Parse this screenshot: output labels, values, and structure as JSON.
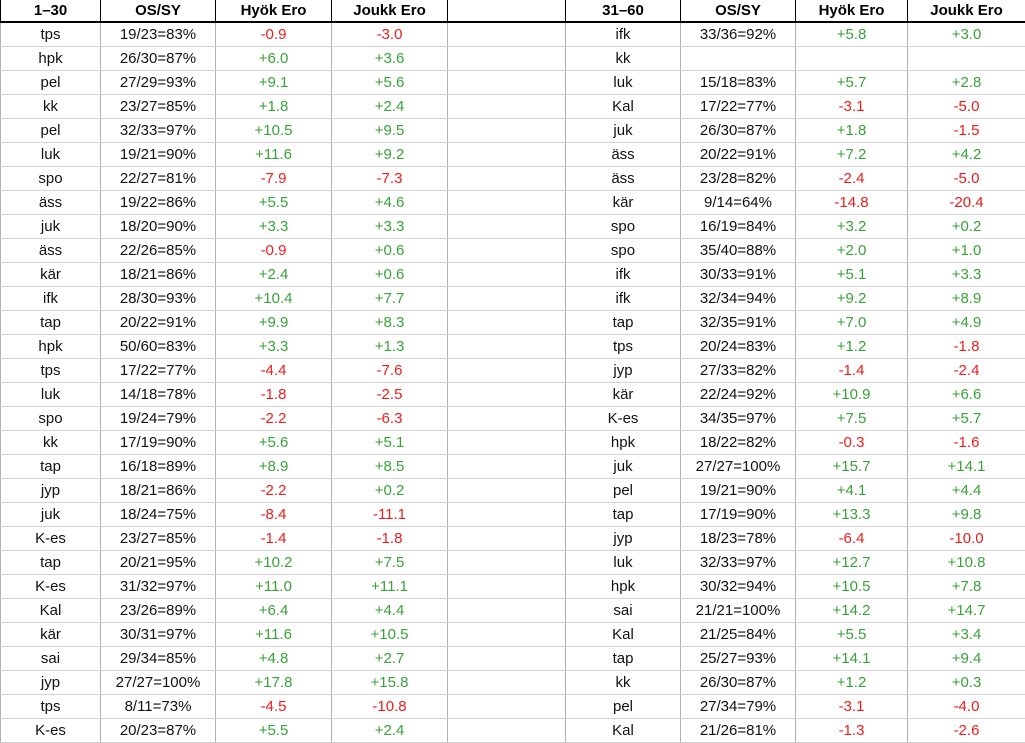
{
  "table": {
    "headers": [
      "1–30",
      "OS/SY",
      "Hyök Ero",
      "Joukk Ero",
      "",
      "31–60",
      "OS/SY",
      "Hyök Ero",
      "Joukk Ero"
    ],
    "colors": {
      "positive": "#3aa23a",
      "negative": "#ee1c1c",
      "header_text": "#000000",
      "body_text": "#111111",
      "header_border": "#000000",
      "grid_vertical": "#b0b0b0",
      "grid_horizontal": "#d2d2d2"
    },
    "rows": [
      {
        "left": [
          "tps",
          "19/23=83%",
          "-0.9",
          "-3.0"
        ],
        "right": [
          "ifk",
          "33/36=92%",
          "+5.8",
          "+3.0"
        ]
      },
      {
        "left": [
          "hpk",
          "26/30=87%",
          "+6.0",
          "+3.6"
        ],
        "right": [
          "kk",
          "",
          "",
          ""
        ]
      },
      {
        "left": [
          "pel",
          "27/29=93%",
          "+9.1",
          "+5.6"
        ],
        "right": [
          "luk",
          "15/18=83%",
          "+5.7",
          "+2.8"
        ]
      },
      {
        "left": [
          "kk",
          "23/27=85%",
          "+1.8",
          "+2.4"
        ],
        "right": [
          "Kal",
          "17/22=77%",
          "-3.1",
          "-5.0"
        ]
      },
      {
        "left": [
          "pel",
          "32/33=97%",
          "+10.5",
          "+9.5"
        ],
        "right": [
          "juk",
          "26/30=87%",
          "+1.8",
          "-1.5"
        ]
      },
      {
        "left": [
          "luk",
          "19/21=90%",
          "+11.6",
          "+9.2"
        ],
        "right": [
          "äss",
          "20/22=91%",
          "+7.2",
          "+4.2"
        ]
      },
      {
        "left": [
          "spo",
          "22/27=81%",
          "-7.9",
          "-7.3"
        ],
        "right": [
          "äss",
          "23/28=82%",
          "-2.4",
          "-5.0"
        ]
      },
      {
        "left": [
          "äss",
          "19/22=86%",
          "+5.5",
          "+4.6"
        ],
        "right": [
          "kär",
          "9/14=64%",
          "-14.8",
          "-20.4"
        ]
      },
      {
        "left": [
          "juk",
          "18/20=90%",
          "+3.3",
          "+3.3"
        ],
        "right": [
          "spo",
          "16/19=84%",
          "+3.2",
          "+0.2"
        ]
      },
      {
        "left": [
          "äss",
          "22/26=85%",
          "-0.9",
          "+0.6"
        ],
        "right": [
          "spo",
          "35/40=88%",
          "+2.0",
          "+1.0"
        ]
      },
      {
        "left": [
          "kär",
          "18/21=86%",
          "+2.4",
          "+0.6"
        ],
        "right": [
          "ifk",
          "30/33=91%",
          "+5.1",
          "+3.3"
        ]
      },
      {
        "left": [
          "ifk",
          "28/30=93%",
          "+10.4",
          "+7.7"
        ],
        "right": [
          "ifk",
          "32/34=94%",
          "+9.2",
          "+8.9"
        ]
      },
      {
        "left": [
          "tap",
          "20/22=91%",
          "+9.9",
          "+8.3"
        ],
        "right": [
          "tap",
          "32/35=91%",
          "+7.0",
          "+4.9"
        ]
      },
      {
        "left": [
          "hpk",
          "50/60=83%",
          "+3.3",
          "+1.3"
        ],
        "right": [
          "tps",
          "20/24=83%",
          "+1.2",
          "-1.8"
        ]
      },
      {
        "left": [
          "tps",
          "17/22=77%",
          "-4.4",
          "-7.6"
        ],
        "right": [
          "jyp",
          "27/33=82%",
          "-1.4",
          "-2.4"
        ]
      },
      {
        "left": [
          "luk",
          "14/18=78%",
          "-1.8",
          "-2.5"
        ],
        "right": [
          "kär",
          "22/24=92%",
          "+10.9",
          "+6.6"
        ]
      },
      {
        "left": [
          "spo",
          "19/24=79%",
          "-2.2",
          "-6.3"
        ],
        "right": [
          "K-es",
          "34/35=97%",
          "+7.5",
          "+5.7"
        ]
      },
      {
        "left": [
          "kk",
          "17/19=90%",
          "+5.6",
          "+5.1"
        ],
        "right": [
          "hpk",
          "18/22=82%",
          "-0.3",
          "-1.6"
        ]
      },
      {
        "left": [
          "tap",
          "16/18=89%",
          "+8.9",
          "+8.5"
        ],
        "right": [
          "juk",
          "27/27=100%",
          "+15.7",
          "+14.1"
        ]
      },
      {
        "left": [
          "jyp",
          "18/21=86%",
          "-2.2",
          "+0.2"
        ],
        "right": [
          "pel",
          "19/21=90%",
          "+4.1",
          "+4.4"
        ]
      },
      {
        "left": [
          "juk",
          "18/24=75%",
          "-8.4",
          "-11.1"
        ],
        "right": [
          "tap",
          "17/19=90%",
          "+13.3",
          "+9.8"
        ]
      },
      {
        "left": [
          "K-es",
          "23/27=85%",
          "-1.4",
          "-1.8"
        ],
        "right": [
          "jyp",
          "18/23=78%",
          "-6.4",
          "-10.0"
        ]
      },
      {
        "left": [
          "tap",
          "20/21=95%",
          "+10.2",
          "+7.5"
        ],
        "right": [
          "luk",
          "32/33=97%",
          "+12.7",
          "+10.8"
        ]
      },
      {
        "left": [
          "K-es",
          "31/32=97%",
          "+11.0",
          "+11.1"
        ],
        "right": [
          "hpk",
          "30/32=94%",
          "+10.5",
          "+7.8"
        ]
      },
      {
        "left": [
          "Kal",
          "23/26=89%",
          "+6.4",
          "+4.4"
        ],
        "right": [
          "sai",
          "21/21=100%",
          "+14.2",
          "+14.7"
        ]
      },
      {
        "left": [
          "kär",
          "30/31=97%",
          "+11.6",
          "+10.5"
        ],
        "right": [
          "Kal",
          "21/25=84%",
          "+5.5",
          "+3.4"
        ]
      },
      {
        "left": [
          "sai",
          "29/34=85%",
          "+4.8",
          "+2.7"
        ],
        "right": [
          "tap",
          "25/27=93%",
          "+14.1",
          "+9.4"
        ]
      },
      {
        "left": [
          "jyp",
          "27/27=100%",
          "+17.8",
          "+15.8"
        ],
        "right": [
          "kk",
          "26/30=87%",
          "+1.2",
          "+0.3"
        ]
      },
      {
        "left": [
          "tps",
          "8/11=73%",
          "-4.5",
          "-10.8"
        ],
        "right": [
          "pel",
          "27/34=79%",
          "-3.1",
          "-4.0"
        ]
      },
      {
        "left": [
          "K-es",
          "20/23=87%",
          "+5.5",
          "+2.4"
        ],
        "right": [
          "Kal",
          "21/26=81%",
          "-1.3",
          "-2.6"
        ]
      }
    ]
  }
}
